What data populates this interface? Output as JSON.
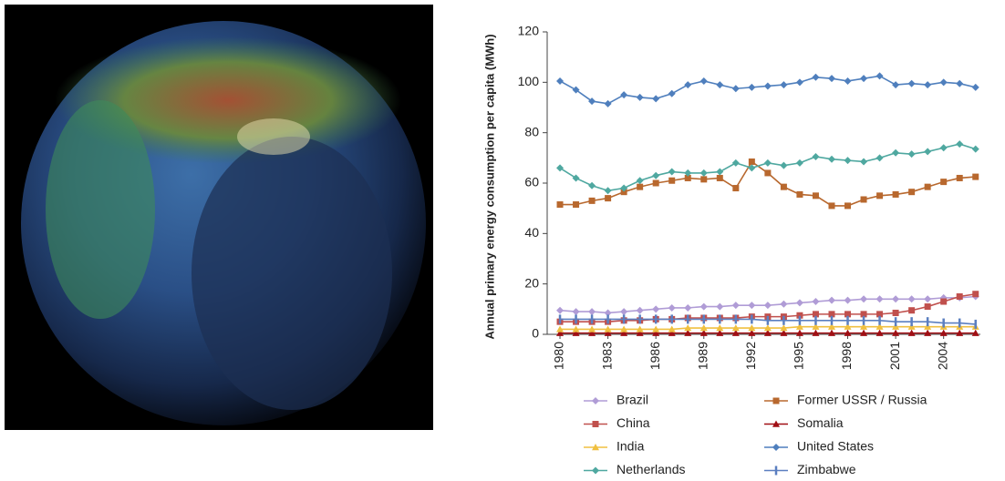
{
  "chart_data": {
    "type": "line",
    "y_label": "Annual primary energy consumption per capita (MWh)",
    "x": [
      1980,
      1981,
      1982,
      1983,
      1984,
      1985,
      1986,
      1987,
      1988,
      1989,
      1990,
      1991,
      1992,
      1993,
      1994,
      1995,
      1996,
      1997,
      1998,
      1999,
      2000,
      2001,
      2002,
      2003,
      2004,
      2005,
      2006
    ],
    "xlim": [
      1979.2,
      2006.3
    ],
    "xticks": [
      1980,
      1983,
      1986,
      1989,
      1992,
      1995,
      1998,
      2001,
      2004
    ],
    "ylim": [
      0,
      120
    ],
    "yticks": [
      0,
      20,
      40,
      60,
      80,
      100,
      120
    ],
    "series": [
      {
        "name": "Brazil",
        "color": "#b09cd6",
        "marker": "diamond",
        "values": [
          9.5,
          9,
          9,
          8.5,
          9,
          9.5,
          10,
          10.5,
          10.5,
          11,
          11,
          11.5,
          11.5,
          11.5,
          12,
          12.5,
          13,
          13.5,
          13.5,
          14,
          14,
          14,
          14,
          14,
          14.5,
          14.5,
          15
        ]
      },
      {
        "name": "Former USSR / Russia",
        "color": "#b8682e",
        "marker": "square",
        "values": [
          51.5,
          51.5,
          53,
          54,
          56.5,
          58.5,
          60,
          61,
          62,
          61.5,
          62,
          58,
          68.5,
          64,
          58.5,
          55.5,
          55,
          51,
          51,
          53.5,
          55,
          55.5,
          56.5,
          58.5,
          60.5,
          62,
          62.5
        ]
      },
      {
        "name": "China",
        "color": "#c0504d",
        "marker": "square",
        "values": [
          5,
          5,
          5,
          5,
          5.5,
          5.5,
          6,
          6,
          6.5,
          6.5,
          6.5,
          6.5,
          7,
          7,
          7,
          7.5,
          8,
          8,
          8,
          8,
          8,
          8.5,
          9.5,
          11,
          13,
          15,
          16
        ]
      },
      {
        "name": "Somalia",
        "color": "#a00f14",
        "marker": "triangle",
        "values": [
          0.5,
          0.5,
          0.5,
          0.5,
          0.5,
          0.5,
          0.5,
          0.5,
          0.5,
          0.5,
          0.5,
          0.5,
          0.5,
          0.5,
          0.5,
          0.5,
          0.5,
          0.5,
          0.5,
          0.5,
          0.5,
          0.5,
          0.5,
          0.5,
          0.5,
          0.5,
          0.5
        ]
      },
      {
        "name": "India",
        "color": "#f0c040",
        "marker": "triangle",
        "values": [
          2,
          2,
          2,
          2,
          2,
          2,
          2,
          2,
          2.5,
          2.5,
          2.5,
          2.5,
          2.5,
          2.5,
          2.5,
          3,
          3,
          3,
          3,
          3,
          3,
          3,
          3,
          3,
          3,
          3,
          3
        ]
      },
      {
        "name": "United States",
        "color": "#4f7fbd",
        "marker": "diamond",
        "values": [
          100.5,
          97,
          92.5,
          91.5,
          95,
          94,
          93.5,
          95.5,
          99,
          100.5,
          99,
          97.5,
          98,
          98.5,
          99,
          100,
          102,
          101.5,
          100.5,
          101.5,
          102.5,
          99,
          99.5,
          99,
          100,
          99.5,
          98
        ]
      },
      {
        "name": "Netherlands",
        "color": "#4fa8a0",
        "marker": "diamond",
        "values": [
          66,
          62,
          59,
          57,
          58,
          61,
          63,
          64.5,
          64,
          64,
          64.5,
          68,
          66,
          68,
          67,
          68,
          70.5,
          69.5,
          69,
          68.5,
          70,
          72,
          71.5,
          72.5,
          74,
          75.5,
          73.5
        ]
      },
      {
        "name": "Zimbabwe",
        "color": "#5b7fc0",
        "marker": "bar",
        "values": [
          6,
          6,
          6,
          6,
          6,
          6,
          6,
          6,
          6,
          6,
          6,
          6,
          6,
          5.5,
          5.5,
          5.5,
          5.5,
          5.5,
          5.5,
          5.5,
          5.5,
          5,
          5,
          5,
          4.5,
          4.5,
          4
        ]
      }
    ]
  }
}
